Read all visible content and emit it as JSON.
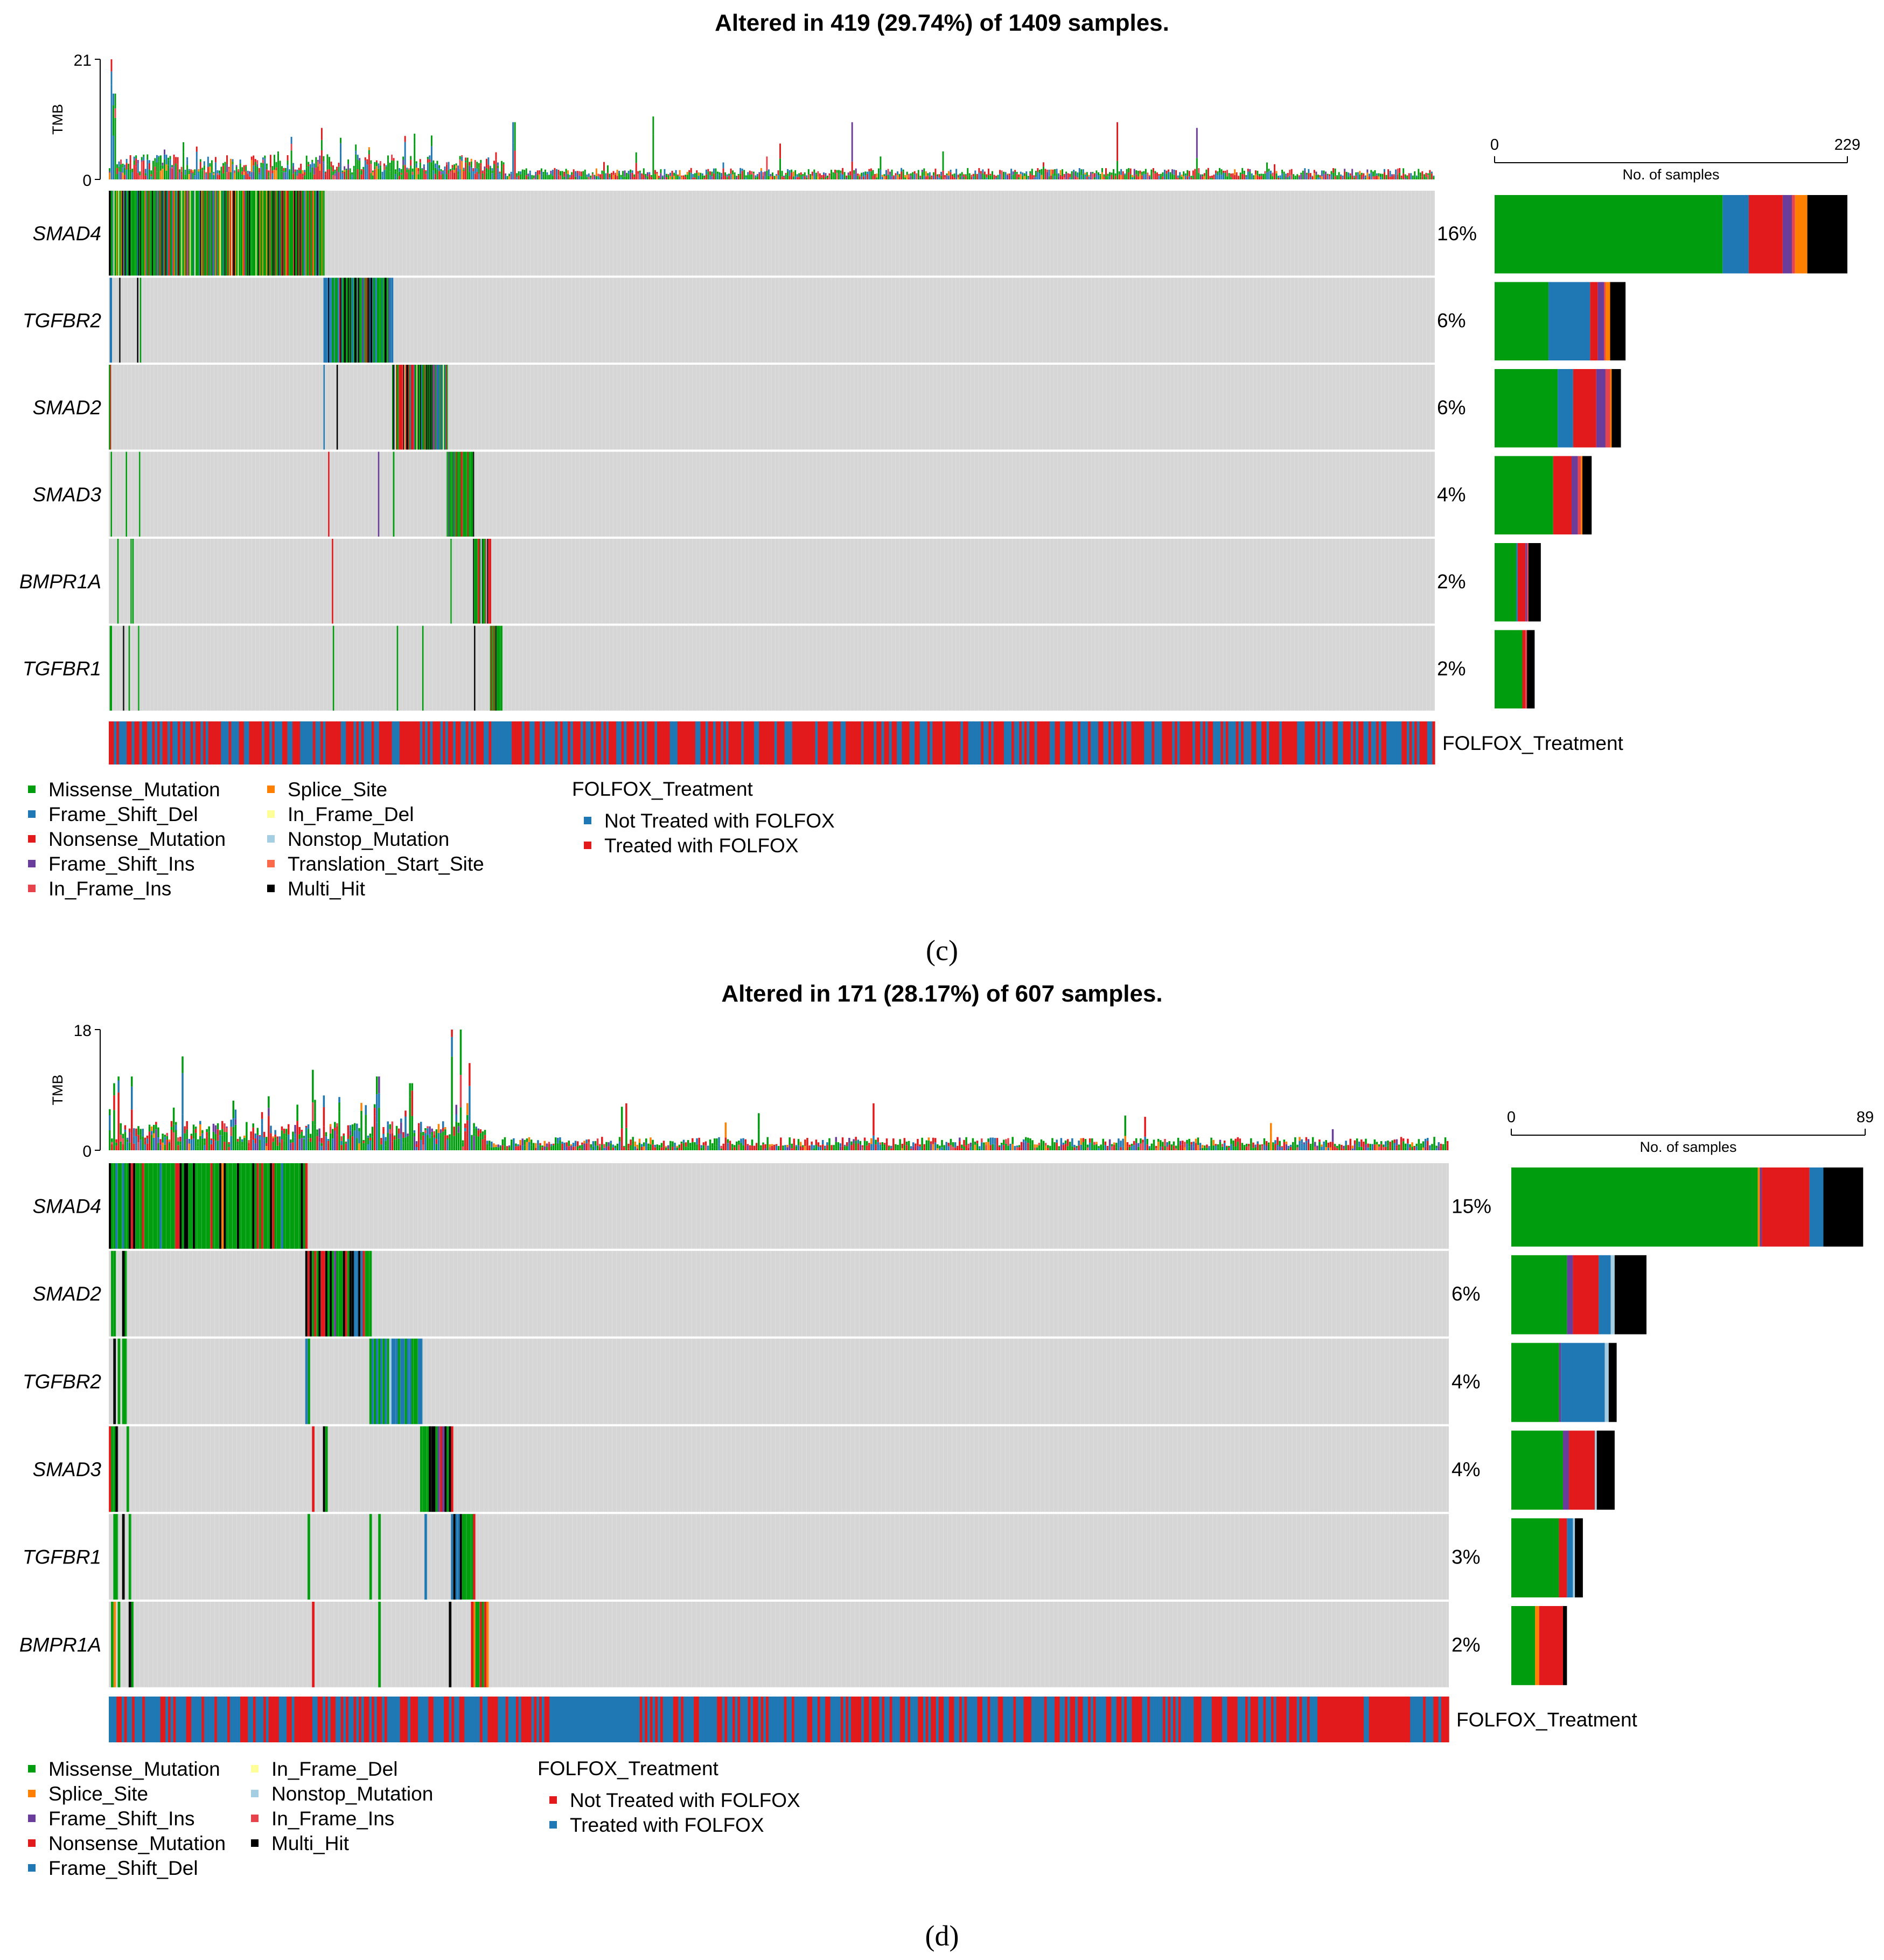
{
  "colors": {
    "Missense_Mutation": "#009E0F",
    "Frame_Shift_Del": "#1F78B4",
    "Nonsense_Mutation": "#E31A1C",
    "Frame_Shift_Ins": "#6A3D9A",
    "In_Frame_Ins": "#E7434D",
    "Splice_Site": "#FF7F00",
    "In_Frame_Del": "#FFFF99",
    "Nonstop_Mutation": "#A6CEE3",
    "Translation_Start_Site": "#FB6A4A",
    "Multi_Hit": "#000000",
    "bg": "#D6D6D6",
    "folfox_blue": "#1F78B4",
    "folfox_red": "#E31A1C"
  },
  "panels": {
    "c": {
      "caption": "(c)",
      "title": "Altered in 419 (29.74%) of 1409 samples.",
      "tmb_label": "TMB",
      "tmb_max_label": "21",
      "tmb_min_label": "0",
      "legend": [
        "Missense_Mutation",
        "Frame_Shift_Del",
        "Nonsense_Mutation",
        "Frame_Shift_Ins",
        "In_Frame_Ins",
        "Splice_Site",
        "In_Frame_Del",
        "Nonstop_Mutation",
        "Translation_Start_Site",
        "Multi_Hit"
      ],
      "annotation_title": "FOLFOX_Treatment",
      "annotation_legend": [
        {
          "label": "Not Treated with FOLFOX",
          "color": "#1F78B4"
        },
        {
          "label": "Treated with FOLFOX",
          "color": "#E31A1C"
        }
      ]
    },
    "d": {
      "caption": "(d)",
      "title": "Altered in 171 (28.17%) of 607 samples.",
      "tmb_label": "TMB",
      "tmb_max_label": "18",
      "tmb_min_label": "0",
      "legend": [
        "Missense_Mutation",
        "Splice_Site",
        "Frame_Shift_Ins",
        "Nonsense_Mutation",
        "Frame_Shift_Del",
        "In_Frame_Del",
        "Nonstop_Mutation",
        "In_Frame_Ins",
        "Multi_Hit"
      ],
      "annotation_title": "FOLFOX_Treatment",
      "annotation_legend": [
        {
          "label": "Not Treated with FOLFOX",
          "color": "#E31A1C"
        },
        {
          "label": "Treated with FOLFOX",
          "color": "#1F78B4"
        }
      ]
    }
  },
  "chart_data": [
    {
      "type": "heatmap",
      "title": "Altered in 419 (29.74%) of 1409 samples.",
      "altered": 419,
      "total_samples": 1409,
      "altered_pct": "29.74%",
      "tmb": {
        "ylabel": "TMB",
        "ylim": [
          0,
          21
        ]
      },
      "genes": [
        "SMAD4",
        "TGFBR2",
        "SMAD2",
        "SMAD3",
        "BMPR1A",
        "TGFBR1"
      ],
      "percent": [
        "16%",
        "6%",
        "6%",
        "4%",
        "2%",
        "2%"
      ],
      "side_bar": {
        "xlabel": "No. of samples",
        "xlim": [
          0,
          229
        ],
        "tick_labels": [
          "0",
          "229"
        ],
        "series_order": [
          "Missense_Mutation",
          "Frame_Shift_Del",
          "Nonsense_Mutation",
          "Frame_Shift_Ins",
          "In_Frame_Ins",
          "Splice_Site",
          "Multi_Hit"
        ],
        "values": [
          [
            148,
            17,
            22,
            6,
            2,
            8,
            26
          ],
          [
            35,
            27,
            5,
            4,
            1,
            3,
            10
          ],
          [
            41,
            10,
            15,
            6,
            3,
            1,
            6
          ],
          [
            38,
            0,
            12,
            4,
            2,
            1,
            6
          ],
          [
            14,
            1,
            5,
            1,
            1,
            0,
            8
          ],
          [
            18,
            0,
            2,
            0,
            1,
            0,
            5
          ]
        ]
      },
      "annotation": "FOLFOX_Treatment"
    },
    {
      "type": "heatmap",
      "title": "Altered in 171 (28.17%) of 607 samples.",
      "altered": 171,
      "total_samples": 607,
      "altered_pct": "28.17%",
      "tmb": {
        "ylabel": "TMB",
        "ylim": [
          0,
          18
        ]
      },
      "genes": [
        "SMAD4",
        "SMAD2",
        "TGFBR2",
        "SMAD3",
        "TGFBR1",
        "BMPR1A"
      ],
      "percent": [
        "15%",
        "6%",
        "4%",
        "4%",
        "3%",
        "2%"
      ],
      "side_bar": {
        "xlabel": "No. of samples",
        "xlim": [
          0,
          89
        ],
        "tick_labels": [
          "0",
          "89"
        ],
        "series_order": [
          "Missense_Mutation",
          "Splice_Site",
          "Frame_Shift_Ins",
          "Nonsense_Mutation",
          "Frame_Shift_Del",
          "Nonstop_Mutation",
          "Multi_Hit"
        ],
        "values": [
          [
            62,
            0.5,
            0.5,
            12,
            3.5,
            0,
            10
          ],
          [
            14,
            0,
            1.5,
            6.5,
            3,
            1,
            8
          ],
          [
            12,
            0,
            0.5,
            0,
            11,
            1,
            2
          ],
          [
            13,
            0,
            1.5,
            6.5,
            0,
            0.5,
            4.5
          ],
          [
            12,
            0,
            0,
            2,
            1.5,
            0.5,
            2
          ],
          [
            6,
            1,
            0,
            6,
            0,
            0,
            1
          ]
        ]
      },
      "annotation": "FOLFOX_Treatment"
    }
  ]
}
